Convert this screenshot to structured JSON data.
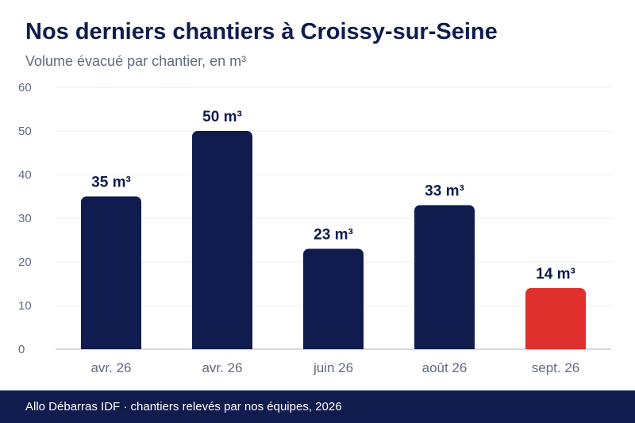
{
  "title": "Nos derniers chantiers à Croissy-sur-Seine",
  "subtitle": "Volume évacué par chantier, en m³",
  "footer": "Allo Débarras IDF · chantiers relevés par nos équipes, 2026",
  "chart_data": {
    "type": "bar",
    "categories": [
      "avr. 26",
      "avr. 26",
      "juin 26",
      "août 26",
      "sept. 26"
    ],
    "values": [
      35,
      50,
      23,
      33,
      14
    ],
    "value_labels": [
      "35 m³",
      "50 m³",
      "23 m³",
      "33 m³",
      "14 m³"
    ],
    "ylim": [
      0,
      60
    ],
    "yticks": [
      0,
      10,
      20,
      30,
      40,
      50,
      60
    ],
    "grid": true,
    "legend": "none",
    "bar_colors": [
      "#0f1c4d",
      "#0f1c4d",
      "#0f1c4d",
      "#0f1c4d",
      "#e0302e"
    ]
  },
  "colors": {
    "primary": "#0f1c4d",
    "highlight": "#e0302e",
    "grid": "#ececf1",
    "axis_text": "#5f6b80"
  }
}
